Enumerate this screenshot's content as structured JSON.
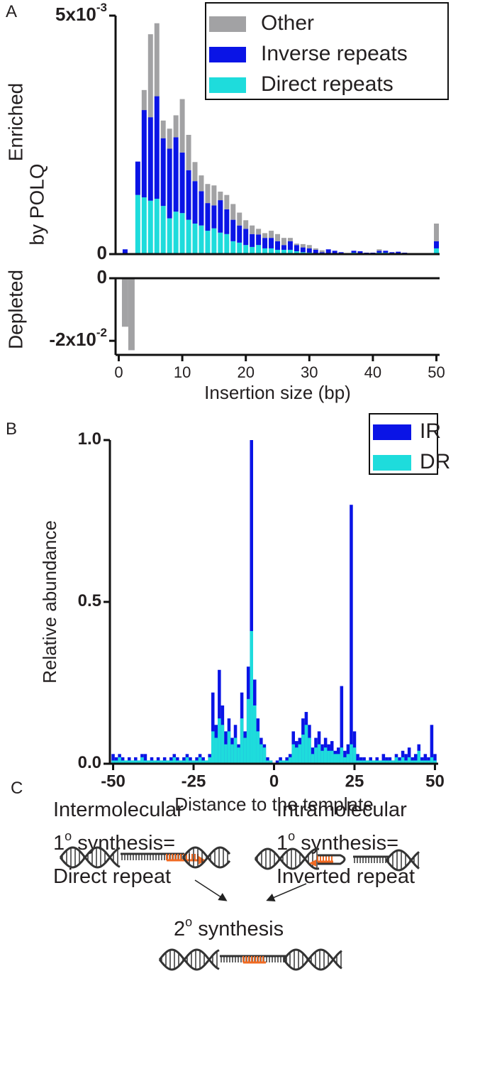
{
  "chart_data": [
    {
      "type": "bar",
      "panel_label": "A",
      "stacked": true,
      "legend": "top-right",
      "y_label": [
        "Enriched",
        "by POLQ"
      ],
      "x": [
        1,
        2,
        3,
        4,
        5,
        6,
        7,
        8,
        9,
        10,
        11,
        12,
        13,
        14,
        15,
        16,
        17,
        18,
        19,
        20,
        21,
        22,
        23,
        24,
        25,
        26,
        27,
        28,
        29,
        30,
        31,
        32,
        33,
        34,
        35,
        36,
        37,
        38,
        39,
        40,
        41,
        42,
        43,
        44,
        45,
        46,
        47,
        48,
        49,
        50
      ],
      "xlim": [
        -0.5,
        50.5
      ],
      "ylim": [
        0,
        0.005
      ],
      "yticks": [
        0,
        {
          "value": 0.005,
          "label": "5x10",
          "exponent": "-3"
        }
      ],
      "series": [
        {
          "name": "Direct repeats",
          "color": "#1edcdc",
          "values": [
            0,
            0,
            0.00124,
            0.00119,
            0.00112,
            0.00116,
            0.00101,
            0.00075,
            0.00089,
            0.00086,
            0.00072,
            0.00064,
            0.0006,
            0.00049,
            0.00054,
            0.00045,
            0.00042,
            0.00027,
            0.00024,
            0.00019,
            0.00015,
            0.00019,
            0.00012,
            0.00012,
            9e-05,
            9e-05,
            9e-05,
            6e-05,
            4e-05,
            3e-05,
            0,
            0,
            0,
            0,
            0,
            0,
            3e-05,
            0,
            0,
            0,
            3e-05,
            3e-05,
            0,
            2e-05,
            0,
            0,
            0,
            0,
            0,
            0.00012
          ]
        },
        {
          "name": "Inverse repeats",
          "color": "#0a14e6",
          "values": [
            0.0001,
            0,
            0.0007,
            0.00183,
            0.00175,
            0.00215,
            0.00142,
            0.00146,
            0.00156,
            0.00127,
            0.00104,
            0.00089,
            0.00072,
            0.00058,
            0.00048,
            0.00068,
            0.00052,
            0.00045,
            0.00036,
            0.00034,
            0.00027,
            0.00022,
            0.00022,
            0.00022,
            0.00018,
            0.0001,
            0.00018,
            0.00013,
            0.0001,
            9e-05,
            9e-05,
            4e-05,
            0.0001,
            7e-05,
            4e-05,
            2e-05,
            4e-05,
            6e-05,
            3e-05,
            3e-05,
            4e-05,
            4e-05,
            4e-05,
            3e-05,
            3e-05,
            2e-05,
            2e-05,
            0,
            0,
            0.00015
          ]
        },
        {
          "name": "Other",
          "color": "#a2a2a4",
          "values": [
            0,
            0,
            0,
            0.00042,
            0.00174,
            0.00153,
            0.00037,
            0.00042,
            0.00046,
            0.00112,
            0.00074,
            0.0004,
            0.00033,
            0.0004,
            0.00042,
            0.00018,
            0.0003,
            0.00033,
            0.00027,
            0.00018,
            0.00018,
            0.00012,
            0.0001,
            0.00015,
            0.00015,
            0.00015,
            7e-05,
            3e-05,
            7e-05,
            7e-05,
            3e-05,
            4e-05,
            0,
            0,
            0,
            0,
            0,
            0,
            0,
            0,
            3e-05,
            0,
            0,
            0,
            0,
            0,
            0,
            0,
            0,
            0.00037
          ]
        }
      ]
    },
    {
      "type": "bar",
      "y_label": "Depleted",
      "x_label": "Insertion size (bp)",
      "x": [
        1,
        2
      ],
      "values": [
        -0.0155,
        -0.023
      ],
      "color": "#a2a2a4",
      "xlim": [
        -0.5,
        50.5
      ],
      "xticks": [
        0,
        10,
        20,
        30,
        40,
        50
      ],
      "ylim": [
        -0.0245,
        0
      ],
      "yticks": [
        0,
        {
          "value": -0.02,
          "label": "-2x10",
          "exponent": "-2"
        }
      ]
    },
    {
      "type": "bar",
      "panel_label": "B",
      "stacked": false,
      "legend": "top-right",
      "y_label": "Relative abundance",
      "x_label": "Distance to the template",
      "x": [
        -50,
        -49,
        -48,
        -47,
        -46,
        -45,
        -44,
        -43,
        -42,
        -41,
        -40,
        -39,
        -38,
        -37,
        -36,
        -35,
        -34,
        -33,
        -32,
        -31,
        -30,
        -29,
        -28,
        -27,
        -26,
        -25,
        -24,
        -23,
        -22,
        -21,
        -20,
        -19,
        -18,
        -17,
        -16,
        -15,
        -14,
        -13,
        -12,
        -11,
        -10,
        -9,
        -8,
        -7,
        -6,
        -5,
        -4,
        -3,
        -2,
        -1,
        0,
        1,
        2,
        3,
        4,
        5,
        6,
        7,
        8,
        9,
        10,
        11,
        12,
        13,
        14,
        15,
        16,
        17,
        18,
        19,
        20,
        21,
        22,
        23,
        24,
        25,
        26,
        27,
        28,
        29,
        30,
        31,
        32,
        33,
        34,
        35,
        36,
        37,
        38,
        39,
        40,
        41,
        42,
        43,
        44,
        45,
        46,
        47,
        48,
        49,
        50
      ],
      "xlim": [
        -51,
        51
      ],
      "xticks": [
        -50,
        -25,
        0,
        25,
        50
      ],
      "ylim": [
        0,
        1
      ],
      "yticks": [
        {
          "value": 0,
          "label": "0.0"
        },
        {
          "value": 0.5,
          "label": "0.5"
        },
        {
          "value": 1,
          "label": "1.0"
        }
      ],
      "series": [
        {
          "name": "IR",
          "color": "#0a14e6",
          "values": [
            0.03,
            0.02,
            0.03,
            0.02,
            0.01,
            0.02,
            0.01,
            0.02,
            0.01,
            0.03,
            0.03,
            0.01,
            0.02,
            0.01,
            0.02,
            0.01,
            0.02,
            0.01,
            0.02,
            0.03,
            0.02,
            0.01,
            0.02,
            0.03,
            0.02,
            0.01,
            0.02,
            0.03,
            0.02,
            0.01,
            0.03,
            0.22,
            0.12,
            0.29,
            0.18,
            0.1,
            0.14,
            0.08,
            0.12,
            0.06,
            0.22,
            0.1,
            0.3,
            1.0,
            0.26,
            0.14,
            0.08,
            0.06,
            0.02,
            0.01,
            0,
            0.01,
            0.02,
            0.01,
            0.02,
            0.03,
            0.1,
            0.07,
            0.08,
            0.14,
            0.16,
            0.12,
            0.05,
            0.08,
            0.1,
            0.06,
            0.08,
            0.06,
            0.07,
            0.04,
            0.05,
            0.24,
            0.04,
            0.06,
            0.8,
            0.1,
            0.03,
            0.02,
            0.02,
            0.01,
            0.02,
            0.01,
            0.02,
            0.01,
            0.03,
            0.02,
            0.02,
            0.01,
            0.03,
            0.02,
            0.04,
            0.03,
            0.05,
            0.02,
            0.03,
            0.06,
            0.02,
            0.03,
            0.02,
            0.12,
            0.03
          ]
        },
        {
          "name": "DR",
          "color": "#1edcdc",
          "values": [
            0.01,
            0.01,
            0.02,
            0.01,
            0.01,
            0.01,
            0.01,
            0.01,
            0.01,
            0.02,
            0.01,
            0.01,
            0.01,
            0.01,
            0.01,
            0.01,
            0.01,
            0.01,
            0.01,
            0.02,
            0.01,
            0.01,
            0.01,
            0.02,
            0.01,
            0.01,
            0.01,
            0.02,
            0.01,
            0.01,
            0.02,
            0.1,
            0.08,
            0.14,
            0.12,
            0.06,
            0.1,
            0.06,
            0.08,
            0.05,
            0.14,
            0.08,
            0.2,
            0.41,
            0.18,
            0.1,
            0.06,
            0.05,
            0.01,
            0.01,
            0,
            0,
            0.01,
            0.01,
            0.01,
            0.02,
            0.06,
            0.05,
            0.06,
            0.09,
            0.12,
            0.08,
            0.03,
            0.05,
            0.06,
            0.04,
            0.05,
            0.04,
            0.04,
            0.03,
            0.03,
            0.05,
            0.02,
            0.03,
            0.06,
            0.05,
            0.01,
            0.01,
            0.01,
            0.01,
            0.01,
            0.01,
            0.01,
            0.01,
            0.01,
            0.01,
            0.01,
            0.01,
            0.02,
            0.01,
            0.02,
            0.01,
            0.02,
            0.01,
            0.01,
            0.04,
            0.01,
            0.01,
            0.01,
            0.02,
            0.01
          ]
        }
      ]
    }
  ],
  "diagram": {
    "label": "C",
    "left": [
      "Intermolecular",
      {
        "base": "1",
        "sup": "o",
        "text": " synthesis="
      },
      "Direct repeat"
    ],
    "right": [
      "Intramolecular",
      {
        "base": "1",
        "sup": "o",
        "text": " synthesis="
      },
      "Inverted repeat"
    ],
    "bottom": {
      "base": "2",
      "sup": "o",
      "text": " synthesis"
    }
  }
}
